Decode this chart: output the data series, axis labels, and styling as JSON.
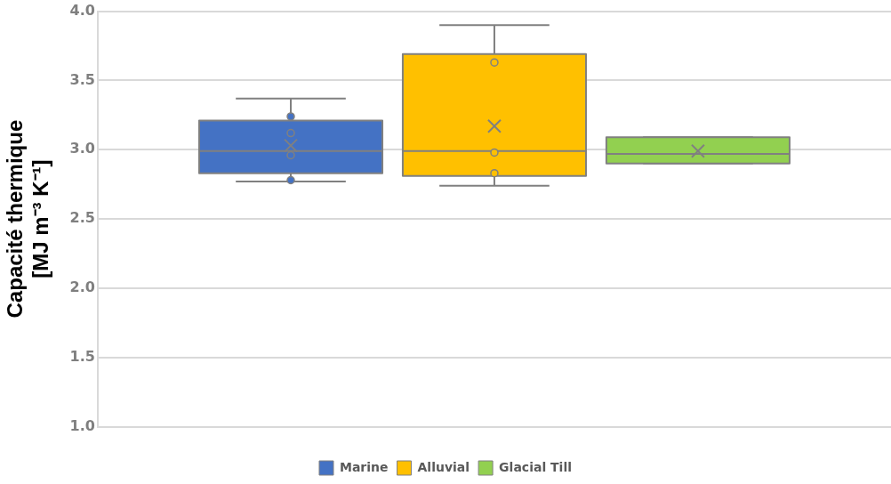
{
  "chart_data": {
    "type": "box",
    "ylabel": "Capacité thermique\n[MJ m⁻³ K⁻¹]",
    "categories": [
      null
    ],
    "series": [
      {
        "name": "Marine",
        "color": "#4472c4",
        "boxes": [
          {
            "low": 2.77,
            "q1": 2.83,
            "median": 2.99,
            "q3": 3.21,
            "high": 3.37,
            "mean": 3.03,
            "outliers": [
              3.24,
              3.12,
              2.96,
              2.78
            ]
          }
        ]
      },
      {
        "name": "Alluvial",
        "color": "#ffc000",
        "boxes": [
          {
            "low": 2.74,
            "q1": 2.81,
            "median": 2.99,
            "q3": 3.69,
            "high": 3.9,
            "mean": 3.17,
            "outliers": [
              3.63,
              2.98,
              2.83
            ]
          }
        ]
      },
      {
        "name": "Glacial Till",
        "color": "#92d050",
        "boxes": [
          {
            "low": 2.9,
            "q1": 2.9,
            "median": 2.97,
            "q3": 3.09,
            "high": 3.09,
            "mean": 2.99
          }
        ]
      }
    ],
    "ylim": [
      1,
      4
    ],
    "yticks": [
      {
        "value": 1,
        "label": "1.0"
      },
      {
        "value": 1.5,
        "label": "1.5"
      },
      {
        "value": 2,
        "label": "2.0"
      },
      {
        "value": 2.5,
        "label": "2.5"
      },
      {
        "value": 3,
        "label": "3.0"
      },
      {
        "value": 3.5,
        "label": "3.5"
      },
      {
        "value": 4,
        "label": "4.0"
      }
    ],
    "grid": "y",
    "legend": "bottom"
  }
}
